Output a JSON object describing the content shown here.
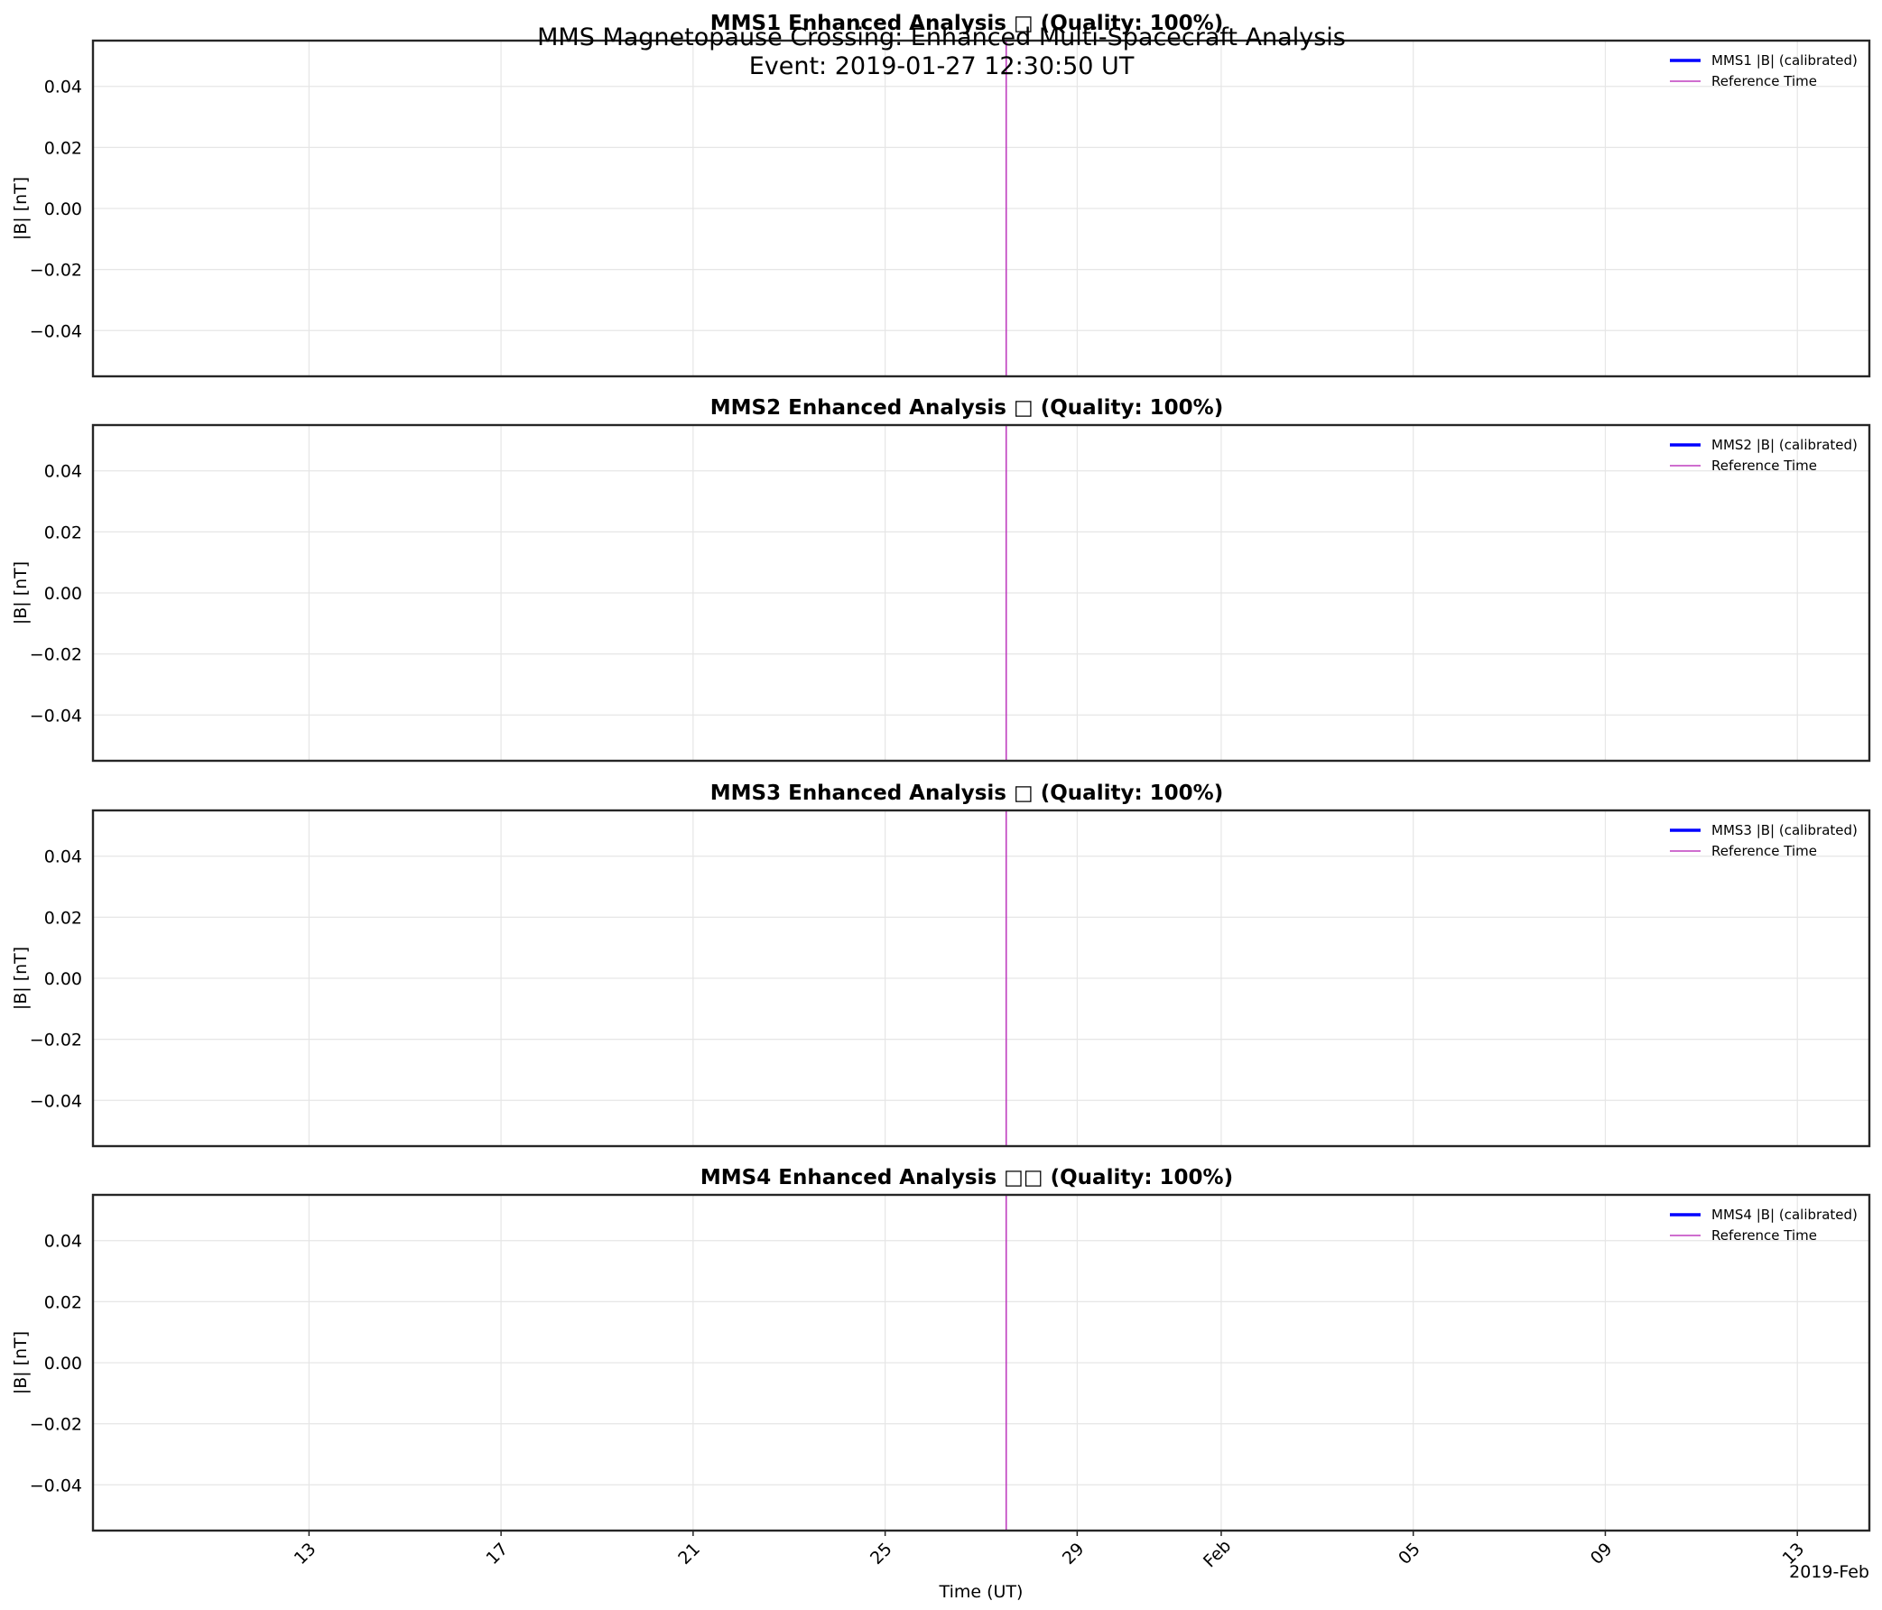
{
  "figure": {
    "title_line1": "MMS Magnetopause Crossing: Enhanced Multi-Spacecraft Analysis",
    "title_line2": "Event: 2019-01-27 12:30:50 UT",
    "xlabel": "Time (UT)",
    "offset_label": "2019-Feb"
  },
  "chart_data": [
    {
      "type": "line",
      "title": "MMS1 Enhanced Analysis □ (Quality: 100%)",
      "ylabel": "|B| [nT]",
      "ylim": [
        -0.055,
        0.055
      ],
      "yticks": [
        0.04,
        0.02,
        0.0,
        -0.02,
        -0.04
      ],
      "ytick_labels": [
        "0.04",
        "0.02",
        "0.00",
        "−0.02",
        "−0.04"
      ],
      "xlim": [
        "2019-01-08T12:00",
        "2019-02-14T12:00"
      ],
      "grid": true,
      "legend_position": "upper-right",
      "series": [
        {
          "name": "MMS1 |B| (calibrated)",
          "color": "#0000ff",
          "x": [],
          "y": []
        }
      ],
      "reference_line": {
        "name": "Reference Time",
        "x": "2019-01-27T12:30:50",
        "color": "#bf3fbf"
      }
    },
    {
      "type": "line",
      "title": "MMS2 Enhanced Analysis □ (Quality: 100%)",
      "ylabel": "|B| [nT]",
      "ylim": [
        -0.055,
        0.055
      ],
      "yticks": [
        0.04,
        0.02,
        0.0,
        -0.02,
        -0.04
      ],
      "ytick_labels": [
        "0.04",
        "0.02",
        "0.00",
        "−0.02",
        "−0.04"
      ],
      "xlim": [
        "2019-01-08T12:00",
        "2019-02-14T12:00"
      ],
      "grid": true,
      "legend_position": "upper-right",
      "series": [
        {
          "name": "MMS2 |B| (calibrated)",
          "color": "#0000ff",
          "x": [],
          "y": []
        }
      ],
      "reference_line": {
        "name": "Reference Time",
        "x": "2019-01-27T12:30:50",
        "color": "#bf3fbf"
      }
    },
    {
      "type": "line",
      "title": "MMS3 Enhanced Analysis □ (Quality: 100%)",
      "ylabel": "|B| [nT]",
      "ylim": [
        -0.055,
        0.055
      ],
      "yticks": [
        0.04,
        0.02,
        0.0,
        -0.02,
        -0.04
      ],
      "ytick_labels": [
        "0.04",
        "0.02",
        "0.00",
        "−0.02",
        "−0.04"
      ],
      "xlim": [
        "2019-01-08T12:00",
        "2019-02-14T12:00"
      ],
      "grid": true,
      "legend_position": "upper-right",
      "series": [
        {
          "name": "MMS3 |B| (calibrated)",
          "color": "#0000ff",
          "x": [],
          "y": []
        }
      ],
      "reference_line": {
        "name": "Reference Time",
        "x": "2019-01-27T12:30:50",
        "color": "#bf3fbf"
      }
    },
    {
      "type": "line",
      "title": "MMS4 Enhanced Analysis □□ (Quality: 100%)",
      "ylabel": "|B| [nT]",
      "ylim": [
        -0.055,
        0.055
      ],
      "yticks": [
        0.04,
        0.02,
        0.0,
        -0.02,
        -0.04
      ],
      "ytick_labels": [
        "0.04",
        "0.02",
        "0.00",
        "−0.02",
        "−0.04"
      ],
      "xlim": [
        "2019-01-08T12:00",
        "2019-02-14T12:00"
      ],
      "grid": true,
      "legend_position": "upper-right",
      "series": [
        {
          "name": "MMS4 |B| (calibrated)",
          "color": "#0000ff",
          "x": [],
          "y": []
        }
      ],
      "reference_line": {
        "name": "Reference Time",
        "x": "2019-01-27T12:30:50",
        "color": "#bf3fbf"
      }
    }
  ],
  "x_axis": {
    "ticks": [
      "2019-01-13",
      "2019-01-17",
      "2019-01-21",
      "2019-01-25",
      "2019-01-29",
      "2019-02-01",
      "2019-02-05",
      "2019-02-09",
      "2019-02-13"
    ],
    "tick_labels": [
      "13",
      "17",
      "21",
      "25",
      "29",
      "Feb",
      "05",
      "09",
      "13"
    ]
  },
  "colors": {
    "axis": "#262626",
    "grid": "#e6e6e6",
    "series": "#0000ff",
    "reference": "#bf3fbf"
  }
}
